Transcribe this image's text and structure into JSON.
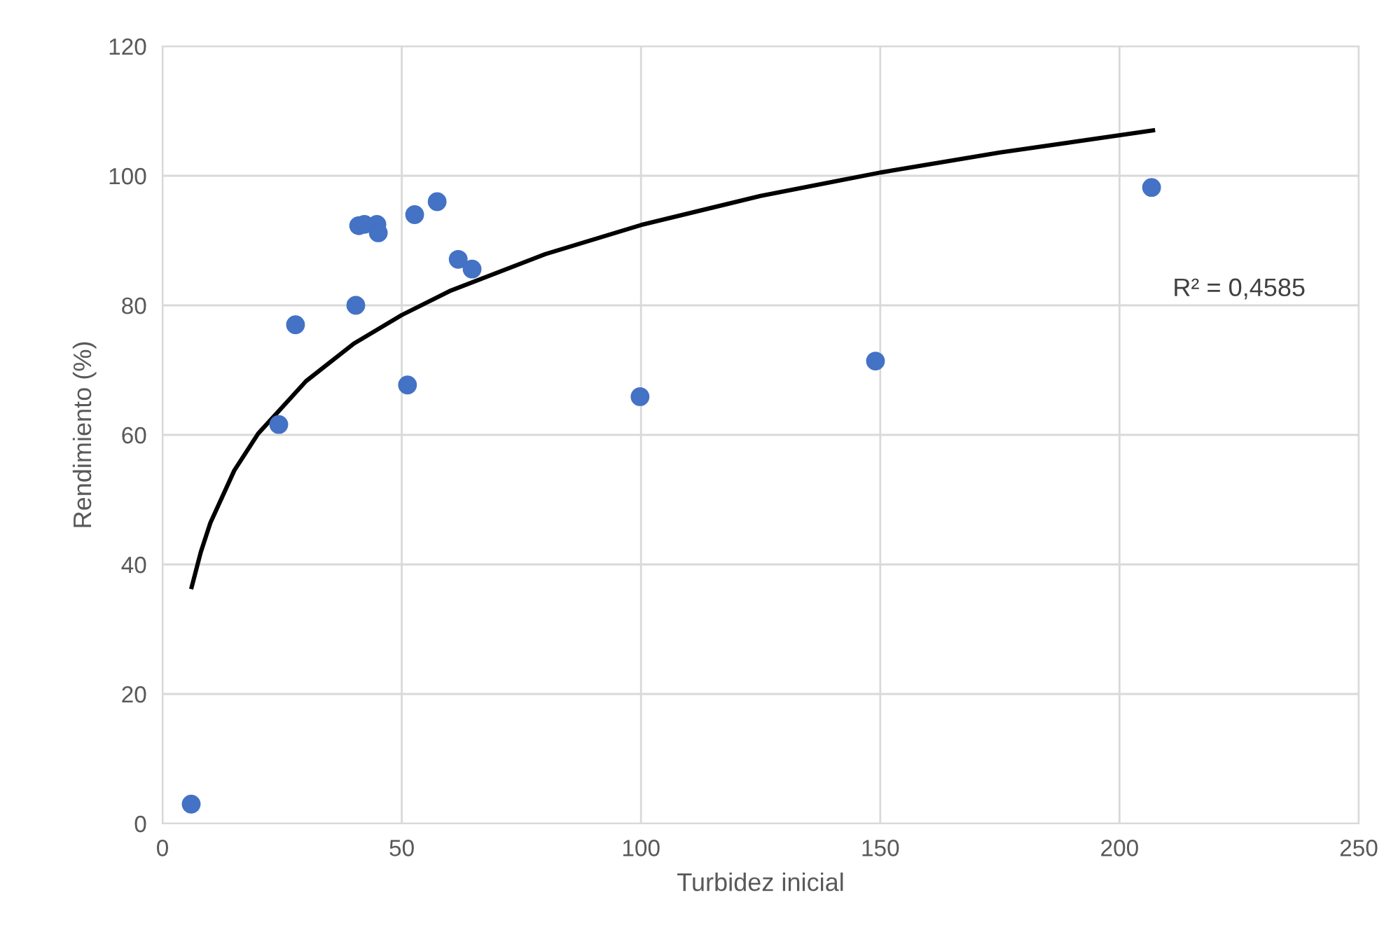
{
  "chart_data": {
    "type": "scatter",
    "xlabel": "Turbidez inicial",
    "ylabel": "Rendimiento (%)",
    "xlim": [
      0,
      250
    ],
    "xticks": [
      0,
      50,
      100,
      150,
      200,
      250
    ],
    "ylim": [
      0,
      120
    ],
    "yticks": [
      0,
      20,
      40,
      60,
      80,
      100,
      120
    ],
    "grid": true,
    "legend": false,
    "marker": "circle",
    "series": [
      {
        "color": "#4472c4",
        "x": [
          6,
          24.3,
          27.8,
          40.4,
          41,
          42.2,
          44.8,
          45.1,
          51.2,
          52.7,
          57.4,
          61.8,
          64.7,
          99.8,
          149,
          206.7
        ],
        "values": [
          3,
          61.6,
          77,
          80,
          92.3,
          92.5,
          92.5,
          91.2,
          67.7,
          94,
          96,
          87.1,
          85.6,
          65.9,
          71.4,
          98.2
        ]
      },
      {
        "type": "line",
        "color": "#000000",
        "marker": "none",
        "line_style": "solid",
        "x": [
          6.1,
          8,
          10,
          15,
          20,
          30,
          40,
          50,
          60,
          80,
          100,
          125,
          150,
          175,
          207
        ],
        "values": [
          36.5,
          41.9,
          46.4,
          54.5,
          60.2,
          68.3,
          74.1,
          78.5,
          82.2,
          87.9,
          92.4,
          96.9,
          100.5,
          103.6,
          107.0
        ]
      }
    ],
    "annotations": [
      "R² = 0,4585"
    ]
  }
}
